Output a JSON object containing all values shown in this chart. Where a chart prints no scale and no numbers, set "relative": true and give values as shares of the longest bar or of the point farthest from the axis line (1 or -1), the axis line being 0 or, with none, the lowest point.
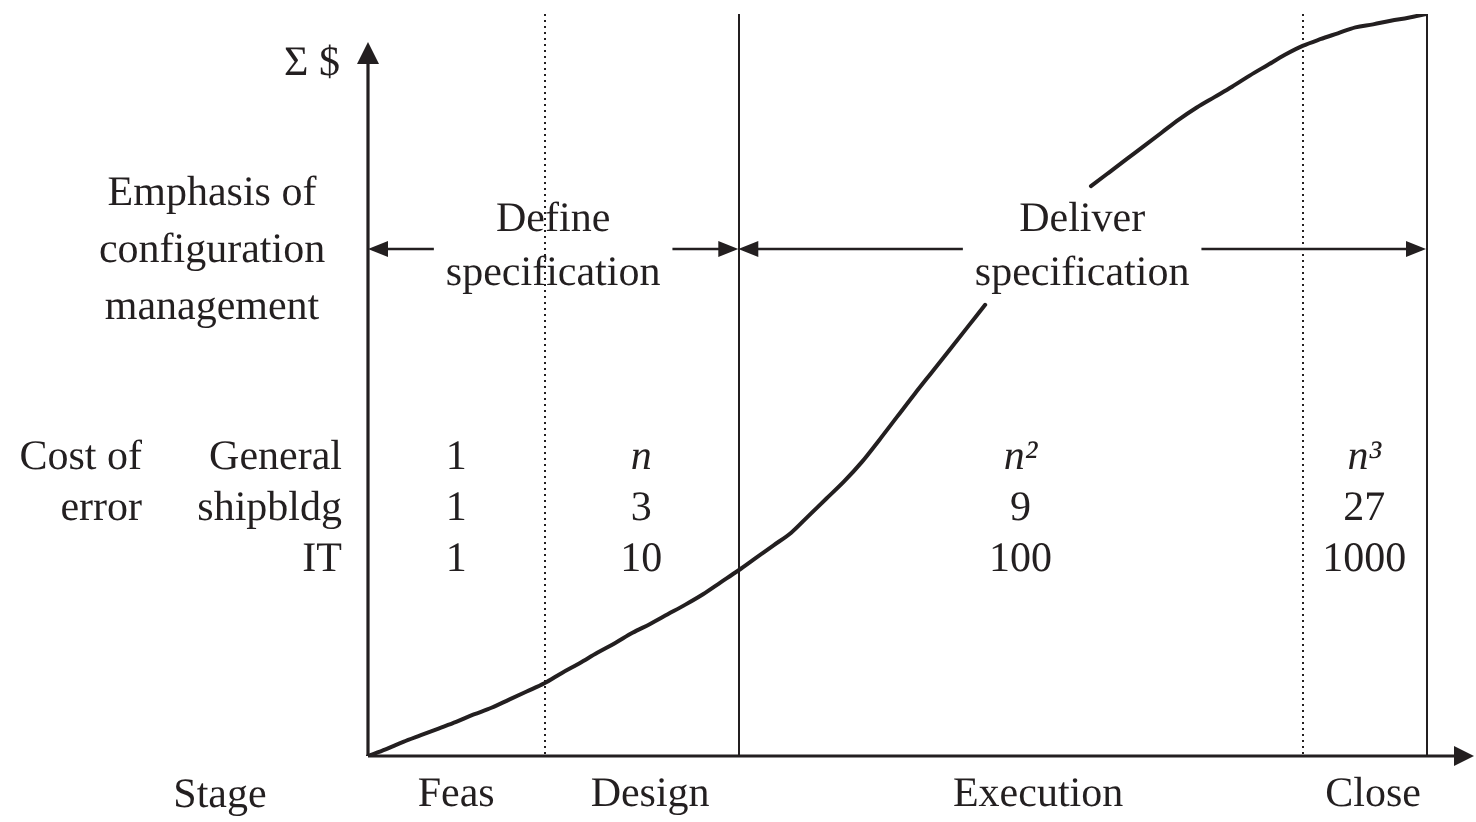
{
  "chart_data": {
    "type": "line",
    "xlabel": "Stage",
    "ylabel": "Σ $",
    "relative": true,
    "categories": [
      null,
      null,
      null,
      null,
      null,
      "Feas",
      null,
      null,
      null,
      null,
      null,
      null,
      null,
      null,
      null,
      null,
      "Design",
      null,
      null,
      null,
      null,
      null,
      null,
      null,
      null,
      null,
      null,
      null,
      null,
      null,
      null,
      null,
      null,
      null,
      null,
      null,
      null,
      null,
      "Execution",
      null,
      null,
      null,
      null,
      null,
      null,
      null,
      null,
      null,
      null,
      null,
      null,
      null,
      null,
      null,
      null,
      null,
      null,
      "Close",
      null,
      null,
      null
    ],
    "color": "#231f20",
    "values": [
      0,
      0.009,
      0.019,
      0.028,
      0.037,
      0.046,
      0.056,
      0.065,
      0.076,
      0.087,
      0.098,
      0.112,
      0.125,
      0.139,
      0.152,
      0.166,
      0.178,
      0.191,
      0.204,
      0.218,
      0.234,
      0.25,
      0.267,
      0.284,
      0.301,
      0.324,
      0.347,
      0.37,
      0.396,
      0.426,
      0.457,
      0.488,
      0.518,
      0.548,
      0.578,
      0.608,
      null,
      null,
      null,
      null,
      null,
      0.768,
      0.786,
      0.804,
      0.822,
      0.84,
      0.858,
      0.874,
      0.888,
      0.902,
      0.917,
      0.931,
      0.945,
      0.957,
      0.966,
      0.974,
      0.982,
      0.986,
      0.991,
      0.995,
      1
    ],
    "annotations": [
      "Emphasis of configuration management",
      "Define specification",
      "Deliver specification",
      "Cost of error",
      "General",
      "1",
      "n",
      "n²",
      "n³",
      "shipbldg",
      "1",
      "3",
      "9",
      "27",
      "IT",
      "1",
      "10",
      "100",
      "1000"
    ]
  }
}
